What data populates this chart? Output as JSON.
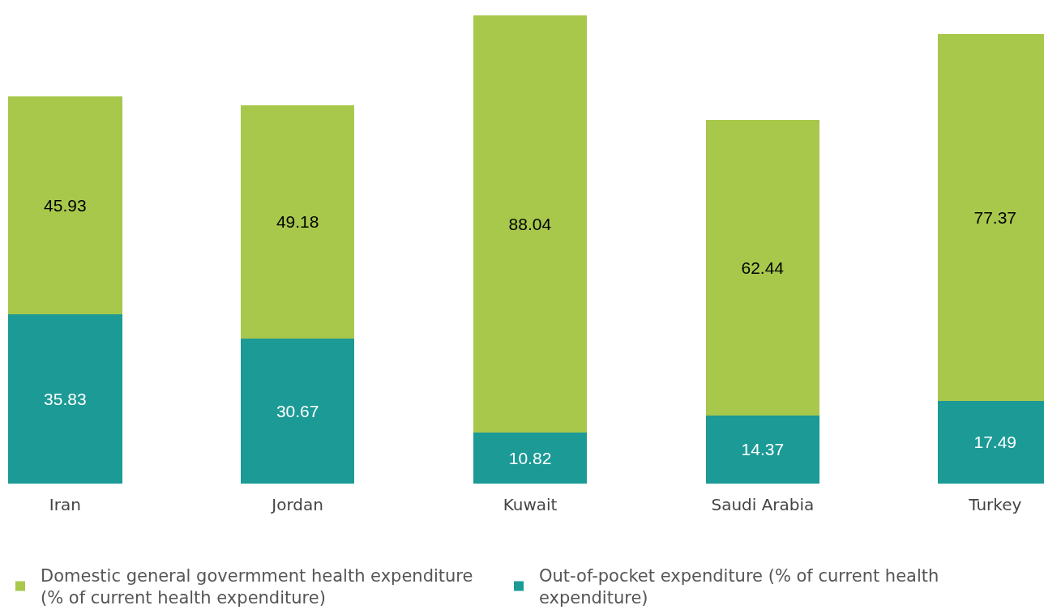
{
  "chart_data": {
    "type": "bar",
    "stacked": true,
    "data_labels": true,
    "legend": "bottom",
    "categories": [
      "Iran",
      "Jordan",
      "Kuwait",
      "Saudi Arabia",
      "Turkey"
    ],
    "series": [
      {
        "name": "Out-of-pocket expenditure (% of current health expenditure)",
        "color": "#1b9a96",
        "values": [
          35.83,
          30.67,
          10.82,
          14.37,
          17.49
        ]
      },
      {
        "name": "Domestic general govermment health expenditure (% of current health expenditure)",
        "color": "#a8c84c",
        "values": [
          45.93,
          49.18,
          88.04,
          62.44,
          77.37
        ]
      }
    ]
  }
}
